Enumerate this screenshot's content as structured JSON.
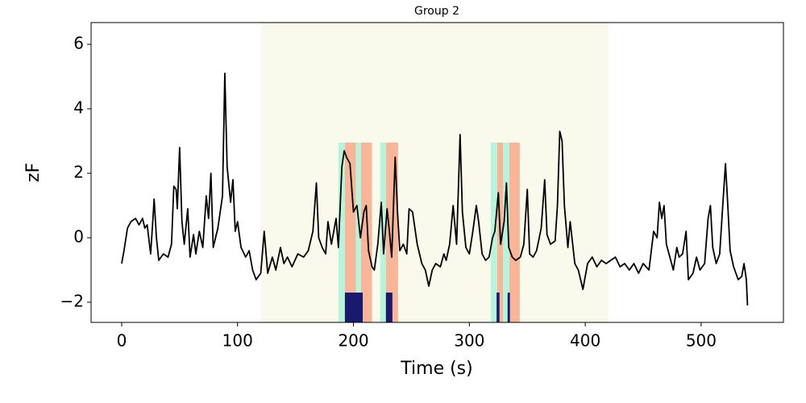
{
  "chart_data": {
    "type": "line",
    "title": "Group 2",
    "x_label": "Time (s)",
    "y_label": "zF",
    "xlim": [
      -26.4,
      571
    ],
    "ylim": [
      -2.625,
      6.675
    ],
    "xticks": [
      0,
      100,
      200,
      300,
      400,
      500
    ],
    "yticks": [
      {
        "value": -2,
        "label": "−2"
      },
      0,
      2,
      4,
      6
    ],
    "spans": [
      {
        "color": "#f9f9ec",
        "ranges": [
          [
            120,
            420
          ]
        ]
      },
      {
        "color": "#b6f5dc",
        "top": 2.95,
        "ranges": [
          [
            187,
            192.6
          ],
          [
            202,
            206.5
          ],
          [
            223,
            228
          ],
          [
            318.5,
            324
          ],
          [
            329,
            334.5
          ]
        ]
      },
      {
        "color": "#f9b598",
        "top": 2.95,
        "ranges": [
          [
            192.6,
            202
          ],
          [
            206.5,
            216
          ],
          [
            228,
            238.5
          ],
          [
            324,
            329
          ],
          [
            334.5,
            343.5
          ]
        ]
      },
      {
        "color": "#191970",
        "top": -1.7,
        "ranges": [
          [
            192.6,
            208
          ],
          [
            228,
            233.6
          ],
          [
            323.5,
            326
          ],
          [
            333,
            335
          ]
        ]
      }
    ],
    "series": [
      {
        "color": "#000000",
        "x": [
          0,
          2,
          5,
          8,
          12,
          15,
          18,
          20,
          22,
          25,
          27,
          28,
          30,
          32,
          36,
          40,
          43,
          45,
          47,
          48,
          50,
          52,
          54,
          57,
          59,
          62,
          64,
          67,
          70,
          73,
          75,
          77,
          79,
          83,
          87,
          89,
          91,
          94,
          96,
          98,
          100,
          103,
          107,
          110,
          113,
          116,
          120,
          123,
          126,
          130,
          133,
          137,
          140,
          143,
          147,
          152,
          157,
          161,
          165,
          168,
          170,
          173,
          176,
          178,
          181,
          185,
          187,
          190,
          192,
          194,
          197,
          200,
          203,
          206,
          209,
          211,
          213,
          216,
          218,
          221,
          224,
          226,
          229,
          231,
          233,
          236,
          238,
          240,
          243,
          246,
          248,
          251,
          255,
          259,
          262,
          265,
          268,
          271,
          275,
          278,
          280,
          283,
          286,
          289,
          292,
          294,
          297,
          300,
          303,
          306,
          308,
          311,
          314,
          317,
          320,
          322,
          325,
          327,
          330,
          332,
          334,
          337,
          340,
          344,
          347,
          350,
          352,
          355,
          358,
          362,
          365,
          367,
          370,
          374,
          376,
          378,
          380,
          382,
          385,
          387,
          391,
          394,
          398,
          402,
          406,
          410,
          414,
          418,
          422,
          426,
          430,
          434,
          438,
          442,
          446,
          450,
          455,
          459,
          462,
          464,
          466,
          468,
          470,
          473,
          476,
          479,
          481,
          484,
          487,
          489,
          493,
          496,
          499,
          503,
          506,
          508,
          510,
          513,
          516,
          519,
          521,
          523,
          525,
          528,
          532,
          535,
          537,
          539,
          540
        ],
        "values": [
          -0.8,
          -0.4,
          0.3,
          0.5,
          0.6,
          0.4,
          0.6,
          0.3,
          0.4,
          -0.5,
          0.6,
          1.2,
          0,
          -0.7,
          -0.5,
          -0.6,
          -0.2,
          1.6,
          1.5,
          0.9,
          2.8,
          0.5,
          -0.2,
          0.9,
          -0.6,
          0.1,
          -0.5,
          0.2,
          -0.3,
          1.3,
          0.6,
          2.0,
          -0.3,
          0.3,
          1.3,
          5.1,
          2.2,
          1.1,
          1.8,
          0.2,
          0.5,
          -0.3,
          -0.6,
          -0.4,
          -1.0,
          -1.3,
          -1.1,
          0.2,
          -1.1,
          -0.6,
          -1.0,
          -0.3,
          -0.8,
          -0.6,
          -0.9,
          -0.5,
          -0.6,
          -0.4,
          0.2,
          1.7,
          0.0,
          -0.3,
          -0.5,
          0.5,
          -0.2,
          0.6,
          -0.3,
          2.2,
          2.7,
          2.5,
          2.3,
          0.8,
          1.0,
          0.0,
          0.8,
          1.0,
          -0.4,
          -0.9,
          -1.0,
          -0.2,
          1.1,
          -0.5,
          0.9,
          0.2,
          -0.6,
          2.5,
          0.8,
          -0.4,
          -0.2,
          -0.5,
          0.9,
          0.8,
          -0.2,
          -0.8,
          -1.0,
          -1.5,
          -1.0,
          -0.8,
          -0.9,
          -0.5,
          -0.7,
          -0.2,
          1.0,
          -0.2,
          3.2,
          0.8,
          -0.3,
          -0.5,
          0.2,
          1.0,
          0.5,
          -0.5,
          -0.7,
          -0.6,
          0.0,
          0.2,
          1.4,
          -0.2,
          0.5,
          1.7,
          -0.3,
          -0.6,
          -0.7,
          -0.6,
          -0.2,
          1.5,
          -0.5,
          -0.6,
          -0.4,
          0.3,
          1.8,
          0.1,
          -0.2,
          -0.1,
          1.0,
          3.3,
          3.0,
          1.0,
          -0.3,
          0.5,
          -0.8,
          -1.0,
          -1.6,
          -0.8,
          -0.6,
          -0.9,
          -0.7,
          -0.8,
          -0.7,
          -0.6,
          -0.9,
          -0.8,
          -1.0,
          -0.8,
          -1.1,
          -0.8,
          -1.0,
          0.2,
          0.0,
          1.1,
          0.6,
          1.0,
          -0.2,
          -0.6,
          -1.0,
          -0.3,
          -0.6,
          -0.5,
          0.2,
          -1.3,
          -1.1,
          -0.6,
          -1.0,
          -0.8,
          0.6,
          1.0,
          -0.3,
          -0.8,
          -0.5,
          1.2,
          2.3,
          1.0,
          -0.4,
          -0.9,
          -1.3,
          -1.2,
          -0.8,
          -1.3,
          -2.1
        ]
      }
    ]
  }
}
